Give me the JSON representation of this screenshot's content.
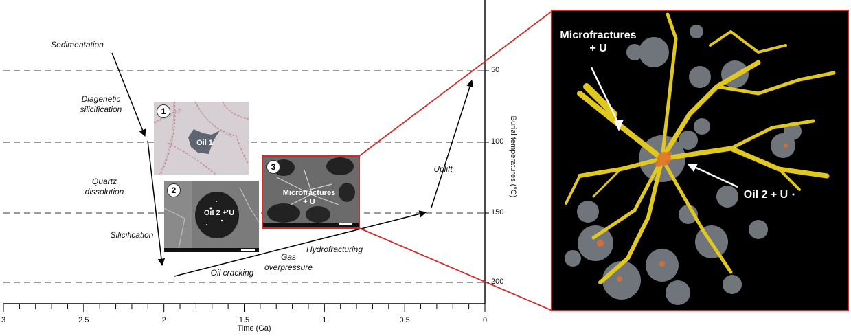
{
  "axis": {
    "x_label": "Time (Ga)",
    "x_ticks": [
      "3",
      "2.5",
      "2",
      "1.5",
      "1",
      "0.5",
      "0"
    ],
    "y_label": "Burial temperatures (°C)",
    "y_ticks": [
      "50",
      "100",
      "150",
      "200"
    ]
  },
  "events": {
    "sedimentation": "Sedimentation",
    "diagenetic_1": "Diagenetic",
    "diagenetic_2": "silicification",
    "quartz_1": "Quartz",
    "quartz_2": "dissolution",
    "silicification": "Silicification",
    "oil_cracking": "Oil cracking",
    "gas_1": "Gas",
    "gas_2": "overpressure",
    "hydrofracturing": "Hydrofracturing",
    "uplift": "Uplift"
  },
  "insets": {
    "inset1_number": "1",
    "inset1_label": "Oil 1",
    "inset2_number": "2",
    "inset2_label": "Oil 2 + U",
    "inset3_number": "3",
    "inset3_label_1": "Microfractures",
    "inset3_label_2": "+ U"
  },
  "tomography": {
    "label_micro_1": "Microfractures",
    "label_micro_2": "+ U",
    "label_oil": "Oil 2 + U"
  },
  "colors": {
    "highlight_red": "#d42a2a",
    "fracture_yellow": "#e0c820",
    "inclusion_grey": "#9aa0a6",
    "oil_orange": "#e0702a"
  }
}
